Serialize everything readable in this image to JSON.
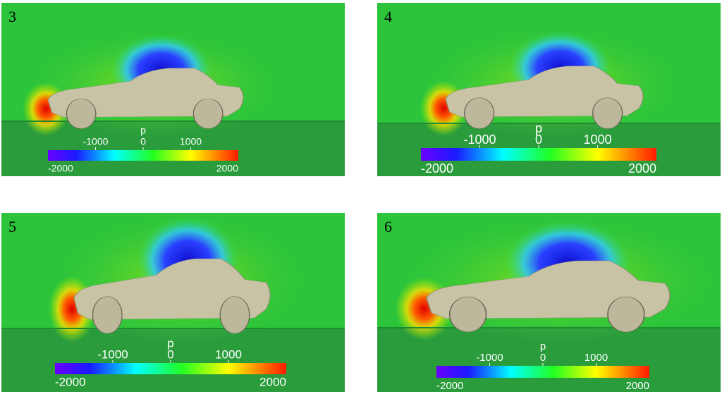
{
  "panels": [
    {
      "label": "3",
      "colorbar": {
        "title": "p",
        "min": -2000,
        "max": 2000,
        "ticks": [
          -1000,
          0,
          1000
        ]
      }
    },
    {
      "label": "4",
      "colorbar": {
        "title": "p",
        "min": -2000,
        "max": 2000,
        "ticks": [
          -1000,
          0,
          1000
        ]
      }
    },
    {
      "label": "5",
      "colorbar": {
        "title": "p",
        "min": -2000,
        "max": 2000,
        "ticks": [
          -1000,
          0,
          1000
        ]
      }
    },
    {
      "label": "6",
      "colorbar": {
        "title": "p",
        "min": -2000,
        "max": 2000,
        "ticks": [
          -1000,
          0,
          1000
        ]
      }
    }
  ]
}
